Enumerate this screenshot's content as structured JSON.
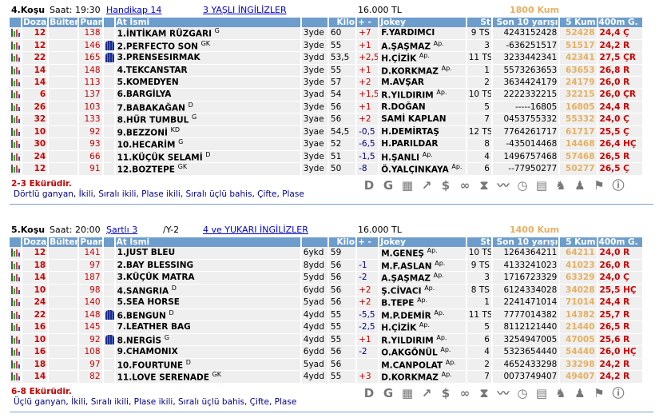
{
  "headers": [
    "",
    "Dozaj",
    "Bülten",
    "Puan",
    "",
    "At İsmi",
    "",
    "Kilo",
    "+ -",
    "Jokey",
    "St",
    "Son 10 yarışı",
    "5 Kum",
    "400m G.",
    "S"
  ],
  "tools": [
    {
      "icon": "d-icon",
      "glyph": "D"
    },
    {
      "icon": "g-icon",
      "glyph": "G"
    },
    {
      "icon": "calculator-hourglass-icon",
      "glyph": "▦"
    },
    {
      "icon": "trend-arrow-icon",
      "glyph": "↗"
    },
    {
      "icon": "dollar-icon",
      "glyph": "$"
    },
    {
      "icon": "binoculars-icon",
      "glyph": "∞"
    },
    {
      "icon": "hourglass-icon",
      "glyph": "⧗"
    },
    {
      "icon": "line-chart-icon",
      "glyph": "〰"
    },
    {
      "icon": "stopwatch-icon",
      "glyph": "◷"
    },
    {
      "icon": "calculator-icon",
      "glyph": "▤"
    },
    {
      "icon": "horse-head-icon",
      "glyph": "♞"
    },
    {
      "icon": "people-icon",
      "glyph": "♟"
    },
    {
      "icon": "checkered-flag-icon",
      "glyph": "⚑"
    },
    {
      "icon": "info-icon",
      "glyph": "ⓘ"
    }
  ],
  "races": [
    {
      "no": "4.Koşu",
      "time": "Saat: 19:30",
      "class": "Handikap  14",
      "group": "3 YAŞLI İNGİLİZLER",
      "prize": "16.000 TL",
      "distance": "1800 Kum",
      "ekuri": "2-3 Ekürüdir.",
      "bets": "Dörtlü ganyan, İkili, Sıralı ikili, Plase ikili, Sıralı üçlü bahis, Çifte, Plase",
      "rows": [
        {
          "dozaj": "12",
          "puan": "138",
          "silk": false,
          "name": "1.İNTİKAM RÜZGARI",
          "sup": "G",
          "age": "3yde",
          "kilo": "60",
          "pm": "+7",
          "jokey": "F.YARDIMCI",
          "jsup": "",
          "st": "9 TS",
          "son": "4243152428",
          "kum": "52428",
          "g400": "24,4 Ç"
        },
        {
          "dozaj": "12",
          "puan": "146",
          "silk": true,
          "name": "2.PERFECTO SON",
          "sup": "GK",
          "age": "3yde",
          "kilo": "55",
          "pm": "+1",
          "jokey": "A.ŞAŞMAZ",
          "jsup": "Ap.",
          "st": "3",
          "son": "-636251517",
          "kum": "51517",
          "g400": "24,2 R"
        },
        {
          "dozaj": "22",
          "puan": "165",
          "silk": true,
          "name": "3.PRENSESIRMAK",
          "sup": "",
          "age": "3ydd",
          "kilo": "53,5",
          "pm": "+2,5",
          "jokey": "H.ÇİZİK",
          "jsup": "Ap.",
          "st": "11 TS",
          "son": "3233442341",
          "kum": "42341",
          "g400": "27,5 ÇR"
        },
        {
          "dozaj": "14",
          "puan": "148",
          "silk": false,
          "name": "4.TEKCANSTAR",
          "sup": "",
          "age": "3yde",
          "kilo": "55",
          "pm": "+1",
          "jokey": "D.KORKMAZ",
          "jsup": "Ap.",
          "st": "1",
          "son": "5573263653",
          "kum": "63653",
          "g400": "26,8 R"
        },
        {
          "dozaj": "14",
          "puan": "113",
          "silk": false,
          "name": "5.KOMEDYEN",
          "sup": "",
          "age": "3yde",
          "kilo": "57",
          "pm": "+2",
          "jokey": "M.AVŞAR",
          "jsup": "",
          "st": "2",
          "son": "3634424179",
          "kum": "24179",
          "g400": "26,0 R"
        },
        {
          "dozaj": "6",
          "puan": "137",
          "silk": false,
          "name": "6.BARGİLYA",
          "sup": "",
          "age": "3yad",
          "kilo": "54",
          "pm": "+1,5",
          "jokey": "R.YILDIRIM",
          "jsup": "Ap.",
          "st": "10 TS",
          "son": "2222332215",
          "kum": "32215",
          "g400": "26,0 ÇR"
        },
        {
          "dozaj": "26",
          "puan": "103",
          "silk": false,
          "name": "7.BABAKAĞAN",
          "sup": "D",
          "age": "3yde",
          "kilo": "56",
          "pm": "+1",
          "jokey": "R.DOĞAN",
          "jsup": "",
          "st": "5",
          "son": "-----16805",
          "kum": "16805",
          "g400": "24,4 R"
        },
        {
          "dozaj": "32",
          "puan": "133",
          "silk": false,
          "name": "8.HÜR TUMBUL",
          "sup": "G",
          "age": "3yae",
          "kilo": "56",
          "pm": "+2",
          "jokey": "SAMİ KAPLAN",
          "jsup": "",
          "st": "7",
          "son": "0453755332",
          "kum": "55332",
          "g400": "24,0 Ç"
        },
        {
          "dozaj": "10",
          "puan": "92",
          "silk": false,
          "name": "9.BEZZONİ",
          "sup": "KD",
          "age": "3yae",
          "kilo": "54,5",
          "pm": "-0,5",
          "jokey": "H.DEMİRTAŞ",
          "jsup": "",
          "st": "12 TS",
          "son": "7764261717",
          "kum": "61717",
          "g400": "25,5 Ç"
        },
        {
          "dozaj": "30",
          "puan": "93",
          "silk": false,
          "name": "10.HECARİM",
          "sup": "G",
          "age": "3yae",
          "kilo": "52",
          "pm": "-6,5",
          "jokey": "H.PARILDAR",
          "jsup": "",
          "st": "8",
          "son": "-435014468",
          "kum": "14468",
          "g400": "26,4 HÇ"
        },
        {
          "dozaj": "24",
          "puan": "66",
          "silk": false,
          "name": "11.KÜÇÜK SELAMİ",
          "sup": "D",
          "age": "3yde",
          "kilo": "51",
          "pm": "-1,5",
          "jokey": "H.ŞANLI",
          "jsup": "Ap.",
          "st": "4",
          "son": "1496757468",
          "kum": "57468",
          "g400": "26,5 R"
        },
        {
          "dozaj": "12",
          "puan": "91",
          "silk": false,
          "name": "12.BOZTEPE",
          "sup": "GK",
          "age": "3yde",
          "kilo": "50",
          "pm": "-8",
          "jokey": "Ö.YALÇINKAYA",
          "jsup": "Ap.",
          "st": "6",
          "son": "--77950277",
          "kum": "50277",
          "g400": "26,5 Ç"
        }
      ]
    },
    {
      "no": "5.Koşu",
      "time": "Saat: 20:00",
      "class": "Şartlı  3",
      "class_suffix": "/Y-2",
      "group": "4 ve YUKARI İNGİLİZLER",
      "prize": "16.000 TL",
      "distance": "1400 Kum",
      "ekuri": "6-8 Ekürüdir.",
      "bets": "Üçlü ganyan, İkili, Sıralı ikili, Plase ikili, Sıralı üçlü bahis, Çifte, Plase",
      "rows": [
        {
          "dozaj": "12",
          "puan": "141",
          "silk": false,
          "name": "1.JUST BLEU",
          "sup": "",
          "age": "6ykd",
          "kilo": "59",
          "pm": "",
          "jokey": "M.GENEŞ",
          "jsup": "Ap.",
          "st": "10 TS",
          "son": "1264364211",
          "kum": "64211",
          "g400": "24,0 R"
        },
        {
          "dozaj": "18",
          "puan": "97",
          "silk": false,
          "name": "2.BAY BLESSING",
          "sup": "",
          "age": "8ydd",
          "kilo": "56",
          "pm": "-1",
          "jokey": "M.F.ASLAN",
          "jsup": "Ap.",
          "st": "9 TS",
          "son": "4133241023",
          "kum": "41023",
          "g400": "26,0 R"
        },
        {
          "dozaj": "14",
          "puan": "187",
          "silk": false,
          "name": "3.KÜÇÜK MATRA",
          "sup": "",
          "age": "5ydd",
          "kilo": "56",
          "pm": "-2",
          "jokey": "A.ŞAŞMAZ",
          "jsup": "Ap.",
          "st": "3",
          "son": "1716723329",
          "kum": "63329",
          "g400": "24,0 Ç"
        },
        {
          "dozaj": "10",
          "puan": "98",
          "silk": false,
          "name": "4.SANGRIA",
          "sup": "D",
          "age": "6ydd",
          "kilo": "56",
          "pm": "+2",
          "jokey": "Ş.CİVACI",
          "jsup": "Ap.",
          "st": "8 TS",
          "son": "6124334028",
          "kum": "34028",
          "g400": "25,5 HÇ"
        },
        {
          "dozaj": "24",
          "puan": "140",
          "silk": false,
          "name": "5.SEA HORSE",
          "sup": "",
          "age": "5yad",
          "kilo": "56",
          "pm": "+2",
          "jokey": "B.TEPE",
          "jsup": "Ap.",
          "st": "1",
          "son": "2241471014",
          "kum": "71014",
          "g400": "24,4 R"
        },
        {
          "dozaj": "22",
          "puan": "148",
          "silk": true,
          "name": "6.BENGUN",
          "sup": "D",
          "age": "4ydd",
          "kilo": "55",
          "pm": "-5,5",
          "jokey": "M.P.DEMİR",
          "jsup": "Ap.",
          "st": "11 TS",
          "son": "7777014382",
          "kum": "14382",
          "g400": "25,7 R"
        },
        {
          "dozaj": "16",
          "puan": "145",
          "silk": false,
          "name": "7.LEATHER BAG",
          "sup": "",
          "age": "4ydd",
          "kilo": "55",
          "pm": "-2,5",
          "jokey": "H.ÇİZİK",
          "jsup": "Ap.",
          "st": "5",
          "son": "8112121440",
          "kum": "21440",
          "g400": "26,5 R"
        },
        {
          "dozaj": "10",
          "puan": "92",
          "silk": true,
          "name": "8.NERGİS",
          "sup": "G",
          "age": "4ydd",
          "kilo": "55",
          "pm": "+1",
          "jokey": "R.YILDIRIM",
          "jsup": "Ap.",
          "st": "6",
          "son": "3254947005",
          "kum": "47005",
          "g400": "25,6 R"
        },
        {
          "dozaj": "16",
          "puan": "108",
          "silk": false,
          "name": "9.CHAMONIX",
          "sup": "",
          "age": "6ydd",
          "kilo": "56",
          "pm": "-2",
          "jokey": "O.AKGÖNÜL",
          "jsup": "Ap.",
          "st": "4",
          "son": "5323654440",
          "kum": "54440",
          "g400": "26,0 HÇ"
        },
        {
          "dozaj": "18",
          "puan": "97",
          "silk": false,
          "name": "10.FOURTUNE",
          "sup": "D",
          "age": "5yad",
          "kilo": "56",
          "pm": "",
          "jokey": "M.CANPOLAT",
          "jsup": "Ap.",
          "st": "2",
          "son": "4652433298",
          "kum": "33298",
          "g400": "24,2 R"
        },
        {
          "dozaj": "14",
          "puan": "82",
          "silk": false,
          "name": "11.LOVE SERENADE",
          "sup": "GK",
          "age": "4ydd",
          "kilo": "55",
          "pm": "+3",
          "jokey": "D.KORKMAZ",
          "jsup": "Ap.",
          "st": "7",
          "son": "0073749407",
          "kum": "49407",
          "g400": "24,2 R"
        }
      ]
    }
  ]
}
